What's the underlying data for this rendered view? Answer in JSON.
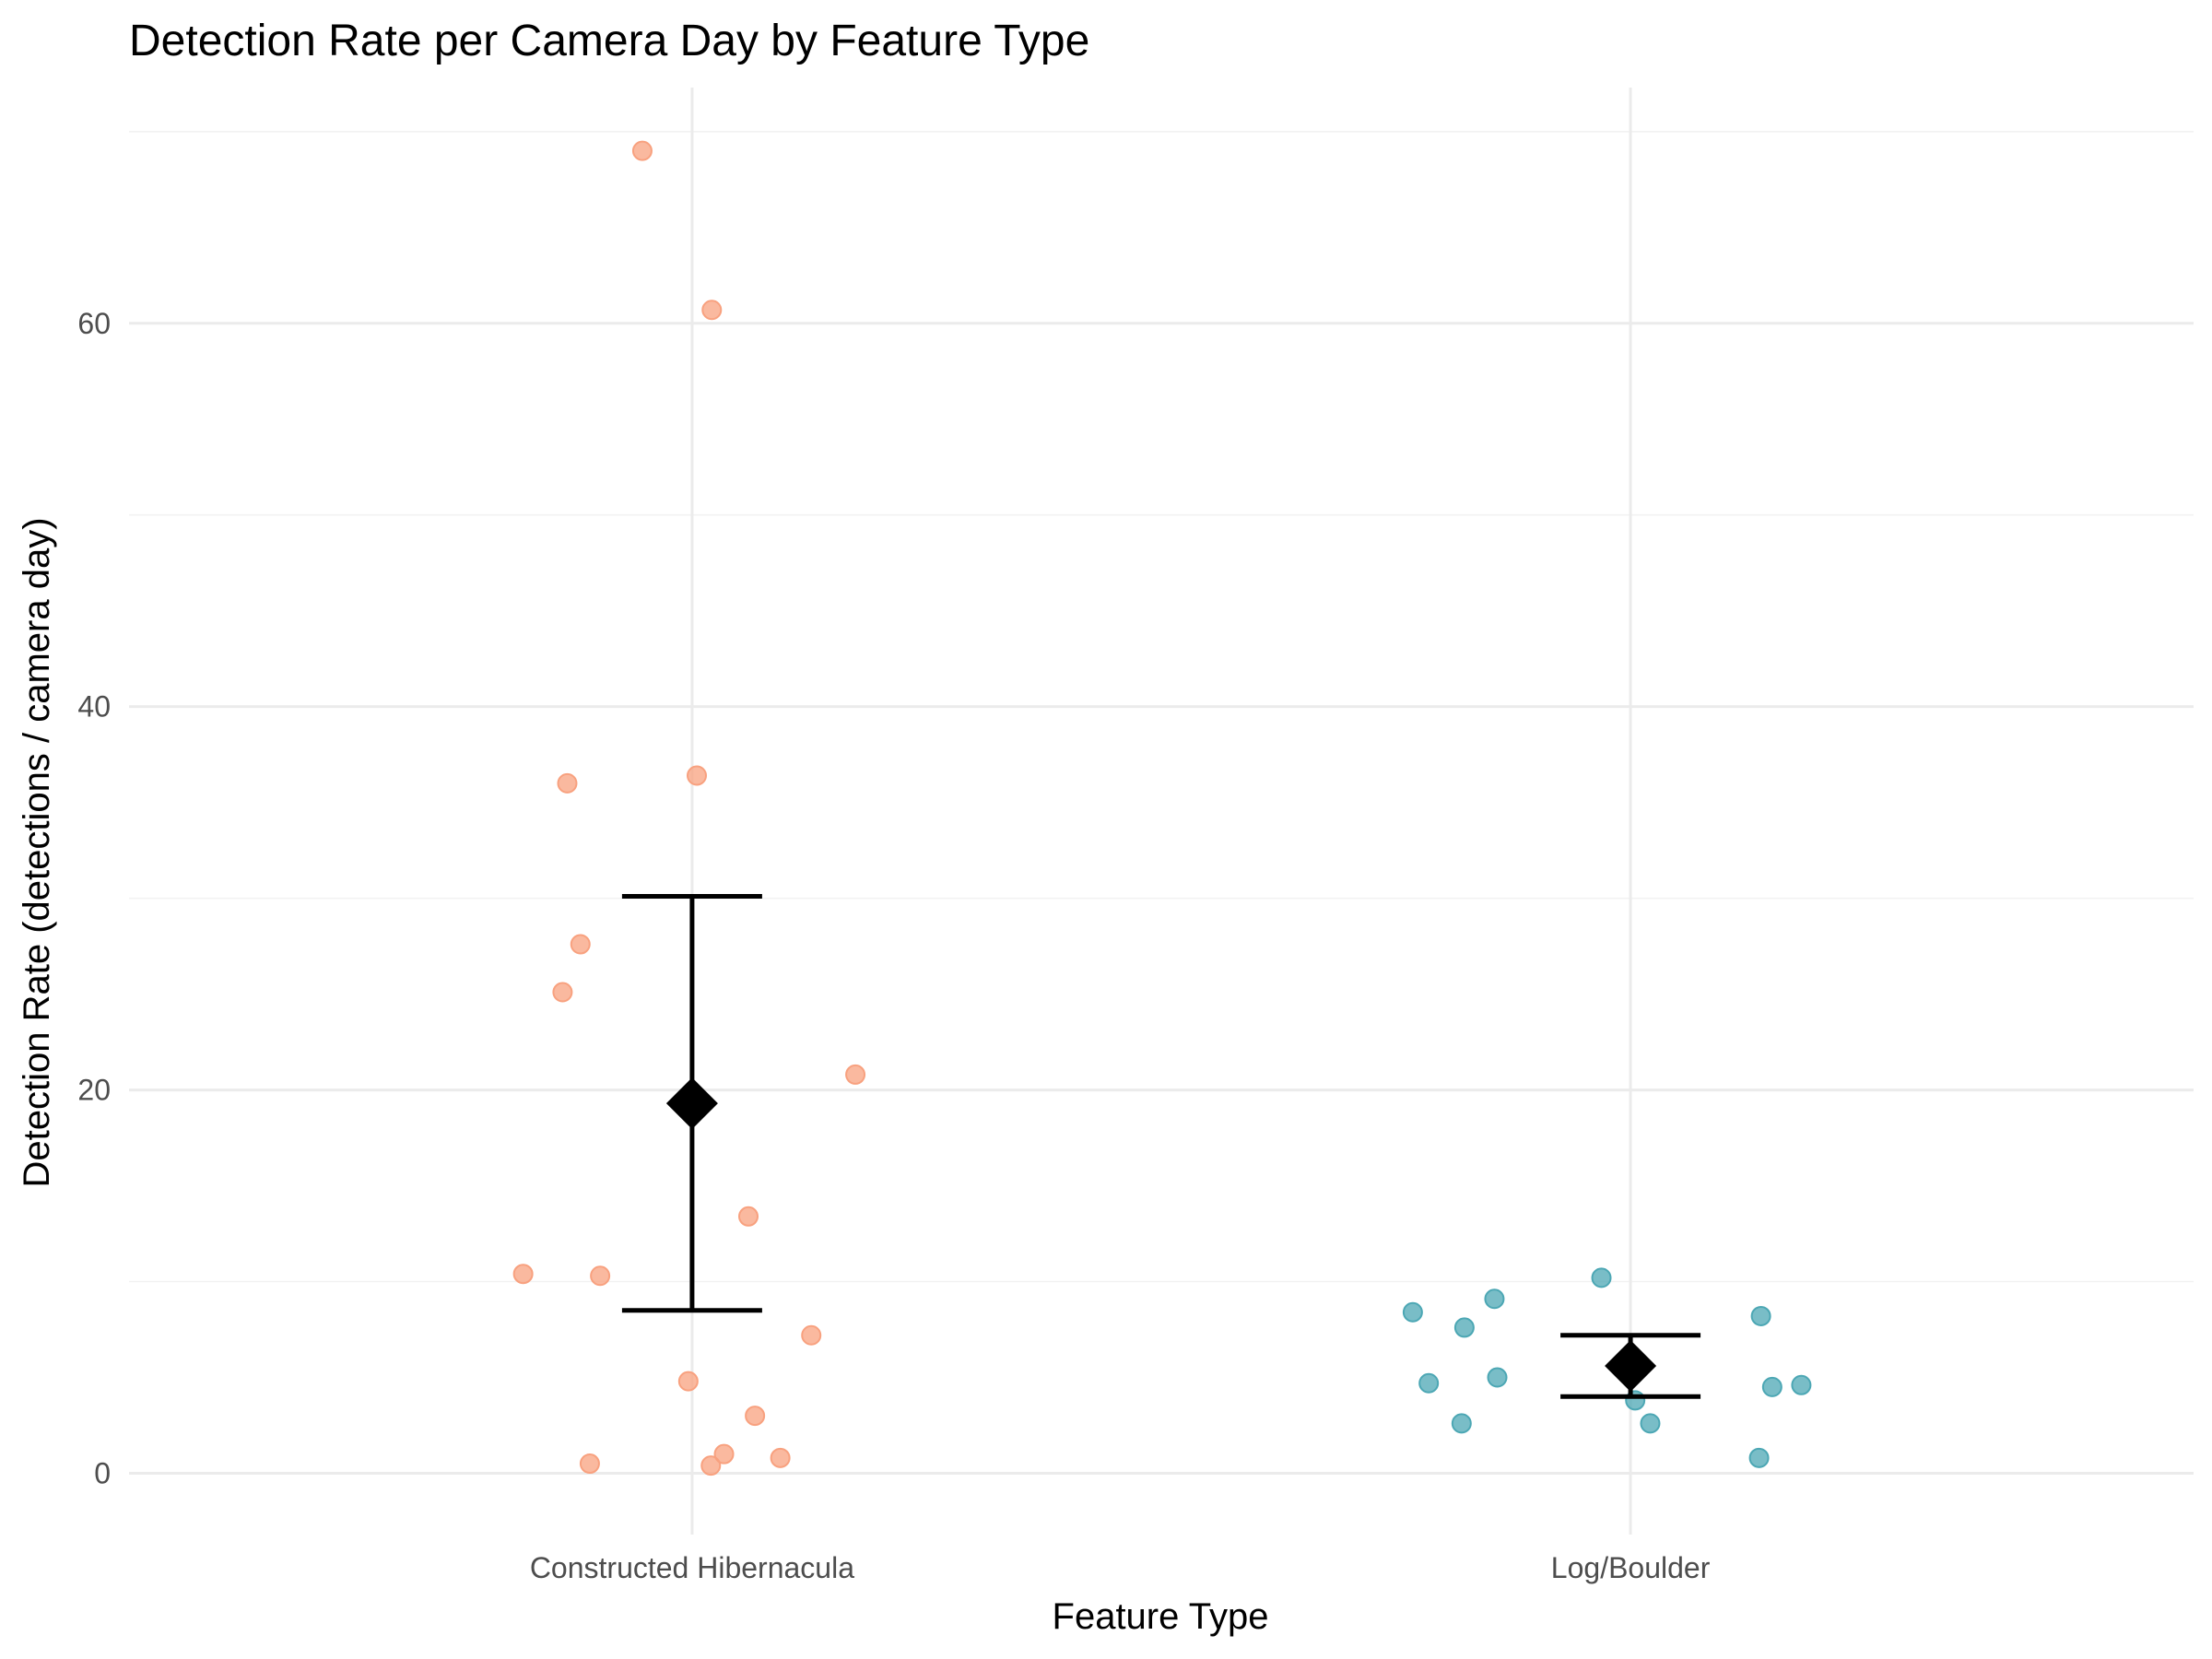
{
  "chart_data": {
    "type": "scatter",
    "title": "Detection Rate per Camera Day by Feature Type",
    "xlabel": "Feature Type",
    "ylabel": "Detection Rate (detections / camera day)",
    "categories": [
      "Constructed Hibernacula",
      "Log/Boulder"
    ],
    "ylim": [
      -3.2,
      72.3
    ],
    "y_ticks": [
      0,
      20,
      40,
      60
    ],
    "grid": true,
    "legend": "none",
    "colors": {
      "Constructed Hibernacula": "#F8A17F",
      "Log/Boulder": "#4CA7B4",
      "summary": "#000000",
      "grid_major": "#EBEBEB",
      "grid_minor": "#F2F2F2"
    },
    "points": [
      {
        "category": "Constructed Hibernacula",
        "jitter": -0.053,
        "y": 69.0
      },
      {
        "category": "Constructed Hibernacula",
        "jitter": 0.021,
        "y": 60.7
      },
      {
        "category": "Constructed Hibernacula",
        "jitter": -0.133,
        "y": 36.0
      },
      {
        "category": "Constructed Hibernacula",
        "jitter": 0.005,
        "y": 36.4
      },
      {
        "category": "Constructed Hibernacula",
        "jitter": -0.119,
        "y": 27.6
      },
      {
        "category": "Constructed Hibernacula",
        "jitter": -0.138,
        "y": 25.1
      },
      {
        "category": "Constructed Hibernacula",
        "jitter": 0.174,
        "y": 20.8
      },
      {
        "category": "Constructed Hibernacula",
        "jitter": 0.06,
        "y": 13.4
      },
      {
        "category": "Constructed Hibernacula",
        "jitter": -0.18,
        "y": 10.4
      },
      {
        "category": "Constructed Hibernacula",
        "jitter": -0.098,
        "y": 10.3
      },
      {
        "category": "Constructed Hibernacula",
        "jitter": 0.127,
        "y": 7.2
      },
      {
        "category": "Constructed Hibernacula",
        "jitter": -0.004,
        "y": 4.8
      },
      {
        "category": "Constructed Hibernacula",
        "jitter": 0.067,
        "y": 3.0
      },
      {
        "category": "Constructed Hibernacula",
        "jitter": 0.034,
        "y": 1.0
      },
      {
        "category": "Constructed Hibernacula",
        "jitter": 0.094,
        "y": 0.8
      },
      {
        "category": "Constructed Hibernacula",
        "jitter": -0.109,
        "y": 0.5
      },
      {
        "category": "Constructed Hibernacula",
        "jitter": 0.02,
        "y": 0.4
      },
      {
        "category": "Log/Boulder",
        "jitter": -0.031,
        "y": 10.2
      },
      {
        "category": "Log/Boulder",
        "jitter": -0.145,
        "y": 9.1
      },
      {
        "category": "Log/Boulder",
        "jitter": -0.232,
        "y": 8.4
      },
      {
        "category": "Log/Boulder",
        "jitter": 0.139,
        "y": 8.2
      },
      {
        "category": "Log/Boulder",
        "jitter": -0.177,
        "y": 7.6
      },
      {
        "category": "Log/Boulder",
        "jitter": -0.142,
        "y": 5.0
      },
      {
        "category": "Log/Boulder",
        "jitter": -0.215,
        "y": 4.7
      },
      {
        "category": "Log/Boulder",
        "jitter": 0.182,
        "y": 4.6
      },
      {
        "category": "Log/Boulder",
        "jitter": 0.151,
        "y": 4.5
      },
      {
        "category": "Log/Boulder",
        "jitter": 0.005,
        "y": 3.8
      },
      {
        "category": "Log/Boulder",
        "jitter": -0.18,
        "y": 2.6
      },
      {
        "category": "Log/Boulder",
        "jitter": 0.021,
        "y": 2.6
      },
      {
        "category": "Log/Boulder",
        "jitter": 0.137,
        "y": 0.8
      }
    ],
    "summary": [
      {
        "category": "Constructed Hibernacula",
        "mean": 19.3,
        "lower": 8.5,
        "upper": 30.1
      },
      {
        "category": "Log/Boulder",
        "mean": 5.6,
        "lower": 4.0,
        "upper": 7.2
      }
    ]
  }
}
